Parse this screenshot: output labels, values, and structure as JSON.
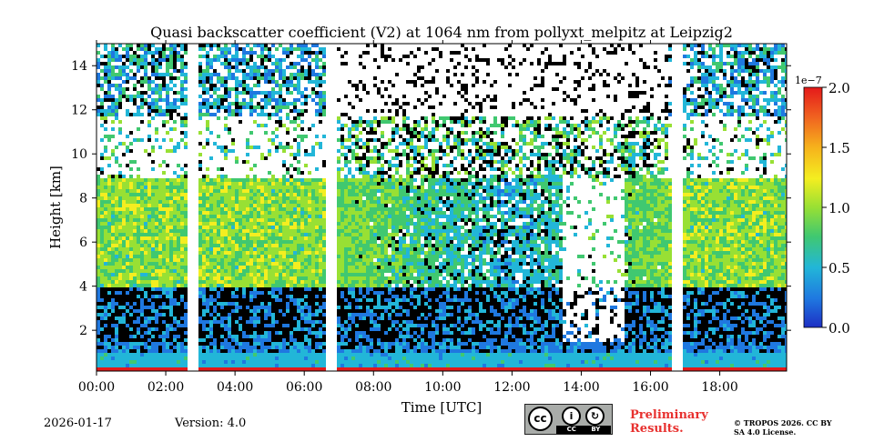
{
  "chart_data": {
    "type": "heatmap",
    "title": "Quasi backscatter coefficient (V2) at 1064 nm from pollyxt_melpitz at Leipzig2",
    "xlabel": "Time [UTC]",
    "ylabel": "Height [km]",
    "xlim": [
      0,
      19.93
    ],
    "ylim": [
      0.15,
      15.0
    ],
    "x_ticks": [
      0,
      2,
      4,
      6,
      8,
      10,
      12,
      14,
      16,
      18
    ],
    "x_tick_labels": [
      "00:00",
      "02:00",
      "04:00",
      "06:00",
      "08:00",
      "10:00",
      "12:00",
      "14:00",
      "16:00",
      "18:00"
    ],
    "y_ticks": [
      2,
      4,
      6,
      8,
      10,
      12,
      14
    ],
    "y_tick_labels": [
      "2",
      "4",
      "6",
      "8",
      "10",
      "12",
      "14"
    ],
    "colorbar": {
      "range": [
        0.0,
        2.0
      ],
      "scale_label": "1e−7",
      "ticks": [
        0.0,
        0.5,
        1.0,
        1.5,
        2.0
      ],
      "tick_labels": [
        "0.0",
        "0.5",
        "1.0",
        "1.5",
        "2.0"
      ],
      "colormap": [
        "#1d2fc4",
        "#1f78e0",
        "#22b6d8",
        "#40c870",
        "#98e034",
        "#f4ee20",
        "#f6b21c",
        "#f06020",
        "#e41a1a"
      ]
    },
    "data_gaps_hours": [
      [
        2.55,
        2.85
      ],
      [
        6.6,
        6.9
      ],
      [
        16.55,
        16.9
      ]
    ],
    "features": {
      "boundary_layer_top_km": 4.0,
      "dark_layer_km": [
        1.5,
        4.0
      ],
      "aerosol_layer_km": [
        4.0,
        9.0
      ],
      "cloud_layer_km": [
        9.5,
        12.0
      ],
      "surface_layer_km": [
        0.2,
        1.0
      ]
    }
  },
  "footer": {
    "date": "2026-01-17",
    "version": "Version: 4.0",
    "preliminary": "Preliminary Results.",
    "copyright": "© TROPOS 2026. CC BY SA 4.0 License.",
    "cc_badge": "CC BY SA"
  }
}
